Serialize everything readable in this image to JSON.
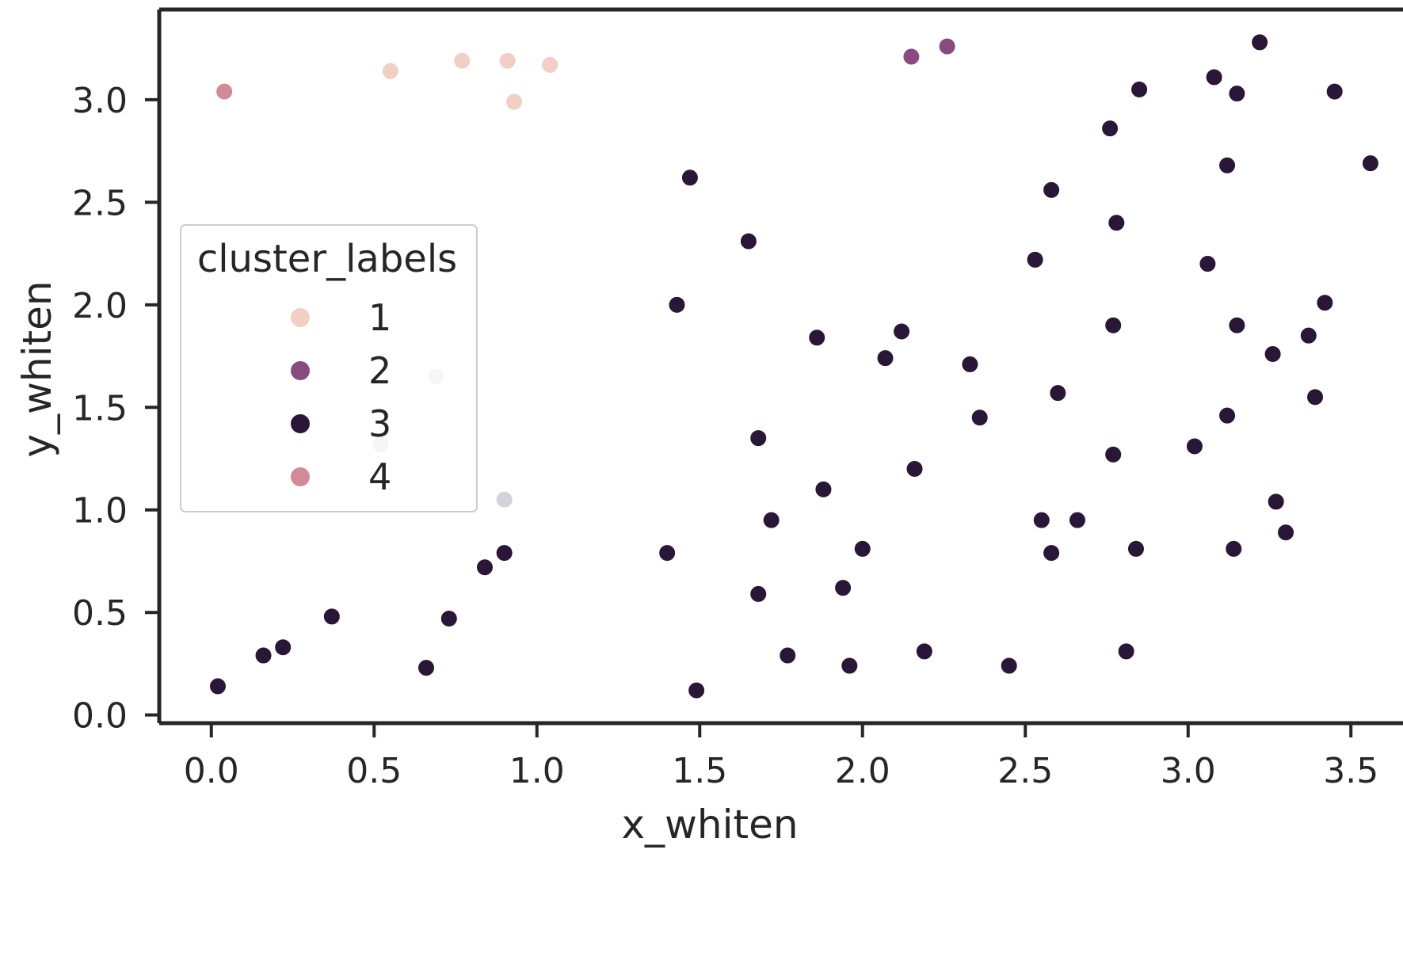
{
  "chart_data": {
    "type": "scatter",
    "xlabel": "x_whiten",
    "ylabel": "y_whiten",
    "xlim": [
      -0.16,
      3.66
    ],
    "ylim": [
      -0.04,
      3.44
    ],
    "xticks": [
      "0.0",
      "0.5",
      "1.0",
      "1.5",
      "2.0",
      "2.5",
      "3.0",
      "3.5"
    ],
    "yticks": [
      "0.0",
      "0.5",
      "1.0",
      "1.5",
      "2.0",
      "2.5",
      "3.0"
    ],
    "grid": false,
    "legend": {
      "title": "cluster_labels",
      "placement": "center-left",
      "entries": [
        {
          "label": "1",
          "color": "#f1cfc4"
        },
        {
          "label": "2",
          "color": "#874b7e"
        },
        {
          "label": "3",
          "color": "#2a1636"
        },
        {
          "label": "4",
          "color": "#d18a96"
        }
      ]
    },
    "series": [
      {
        "name": "1",
        "color": "#f1cfc4",
        "points": [
          [
            0.55,
            3.14
          ],
          [
            0.77,
            3.19
          ],
          [
            0.91,
            3.19
          ],
          [
            0.93,
            2.99
          ],
          [
            1.04,
            3.17
          ]
        ]
      },
      {
        "name": "2",
        "color": "#874b7e",
        "points": [
          [
            2.15,
            3.21
          ],
          [
            2.26,
            3.26
          ]
        ]
      },
      {
        "name": "3",
        "color": "#2a1636",
        "points": [
          [
            0.02,
            0.14
          ],
          [
            0.16,
            0.29
          ],
          [
            0.22,
            0.33
          ],
          [
            0.37,
            0.48
          ],
          [
            0.66,
            0.23
          ],
          [
            0.73,
            0.47
          ],
          [
            0.84,
            0.72
          ],
          [
            0.9,
            0.79
          ],
          [
            1.4,
            0.79
          ],
          [
            1.49,
            0.12
          ],
          [
            1.43,
            2.0
          ],
          [
            1.47,
            2.62
          ],
          [
            1.65,
            2.31
          ],
          [
            1.68,
            1.35
          ],
          [
            1.68,
            0.59
          ],
          [
            1.72,
            0.95
          ],
          [
            1.77,
            0.29
          ],
          [
            1.86,
            1.84
          ],
          [
            1.88,
            1.1
          ],
          [
            1.94,
            0.62
          ],
          [
            1.96,
            0.24
          ],
          [
            2.0,
            0.81
          ],
          [
            2.07,
            1.74
          ],
          [
            2.12,
            1.87
          ],
          [
            2.16,
            1.2
          ],
          [
            2.19,
            0.31
          ],
          [
            2.33,
            1.71
          ],
          [
            2.36,
            1.45
          ],
          [
            2.45,
            0.24
          ],
          [
            2.53,
            2.22
          ],
          [
            2.55,
            0.95
          ],
          [
            2.58,
            2.56
          ],
          [
            2.58,
            0.79
          ],
          [
            2.6,
            1.57
          ],
          [
            2.66,
            0.95
          ],
          [
            2.76,
            2.86
          ],
          [
            2.77,
            1.9
          ],
          [
            2.77,
            1.27
          ],
          [
            2.78,
            2.4
          ],
          [
            2.81,
            0.31
          ],
          [
            2.84,
            0.81
          ],
          [
            2.85,
            3.05
          ],
          [
            3.02,
            1.31
          ],
          [
            3.06,
            2.2
          ],
          [
            3.08,
            3.11
          ],
          [
            3.12,
            1.46
          ],
          [
            3.12,
            2.68
          ],
          [
            3.14,
            0.81
          ],
          [
            3.15,
            1.9
          ],
          [
            3.15,
            3.03
          ],
          [
            3.22,
            3.28
          ],
          [
            3.26,
            1.76
          ],
          [
            3.27,
            1.04
          ],
          [
            3.3,
            0.89
          ],
          [
            3.37,
            1.85
          ],
          [
            3.39,
            1.55
          ],
          [
            3.42,
            2.01
          ],
          [
            3.45,
            3.04
          ],
          [
            3.56,
            2.69
          ]
        ]
      },
      {
        "name": "4",
        "color": "#d18a96",
        "points": [
          [
            0.04,
            3.04
          ]
        ]
      },
      {
        "color": "#d3d3da",
        "points": [
          [
            0.52,
            1.32
          ],
          [
            0.69,
            1.65
          ],
          [
            0.9,
            1.05
          ]
        ]
      }
    ]
  }
}
